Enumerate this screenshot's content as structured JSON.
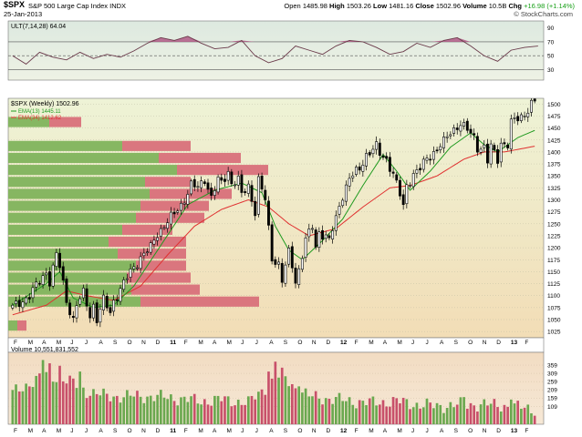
{
  "header": {
    "symbol": "$SPX",
    "name": "S&P 500 Large Cap Index",
    "exchange": "INDX",
    "date": "25-Jan-2013",
    "open_label": "Open",
    "open": "1485.98",
    "high_label": "High",
    "high": "1503.26",
    "low_label": "Low",
    "low": "1481.16",
    "close_label": "Close",
    "close": "1502.96",
    "volume_label": "Volume",
    "volume": "10.5B",
    "chg_label": "Chg",
    "chg": "+16.98 (+1.14%)",
    "watermark": "© StockCharts.com"
  },
  "colors": {
    "up_green": "#18a018",
    "ema13": "#1f9a1f",
    "ema34": "#e03030",
    "vbp_green": "#7fb35c",
    "vbp_red": "#d8707a",
    "vol_green": "#6aa84f",
    "vol_red": "#c8506a",
    "candle": "#000000",
    "price_bg_top": "#eef3d6",
    "price_bg_bottom": "#f2ddb6",
    "ult_fill": "#b05a86"
  },
  "chart_data": [
    {
      "id": "ultimate-oscillator",
      "type": "line",
      "legend": "ULT(7,14,28) 64.04",
      "ylim": [
        15,
        100
      ],
      "reference_lines": [
        30,
        50,
        70
      ],
      "yticks": [
        "90",
        "70",
        "50",
        "30"
      ],
      "x_weeks": [
        0,
        4,
        8,
        12,
        16,
        20,
        24,
        28,
        32,
        36,
        40,
        44,
        48,
        52,
        56,
        60,
        64,
        68,
        72,
        76,
        80,
        84,
        88,
        92,
        96,
        100,
        104,
        108,
        112,
        116,
        120,
        124,
        128,
        132,
        136,
        140,
        144,
        148,
        152,
        156
      ],
      "values": [
        50,
        38,
        55,
        48,
        44,
        55,
        46,
        52,
        48,
        57,
        68,
        76,
        72,
        78,
        68,
        60,
        62,
        72,
        50,
        40,
        46,
        64,
        58,
        52,
        64,
        72,
        70,
        62,
        52,
        56,
        68,
        62,
        72,
        76,
        64,
        50,
        42,
        58,
        62,
        64
      ]
    },
    {
      "id": "price",
      "type": "candlestick",
      "title": "$SPX (Weekly) 1502.96",
      "legend": [
        {
          "name": "EMA(13) 1445.11",
          "color": "#1f9a1f"
        },
        {
          "name": "EMA(34) 1412.62",
          "color": "#e03030"
        }
      ],
      "ylim": [
        1012,
        1512
      ],
      "yticks": [
        1500,
        1475,
        1450,
        1425,
        1400,
        1375,
        1350,
        1325,
        1300,
        1275,
        1250,
        1225,
        1200,
        1175,
        1150,
        1125,
        1100,
        1075,
        1050,
        1025
      ],
      "x_month_labels": [
        "F",
        "M",
        "A",
        "M",
        "J",
        "J",
        "A",
        "S",
        "O",
        "N",
        "D",
        "11",
        "F",
        "M",
        "A",
        "M",
        "J",
        "J",
        "A",
        "S",
        "O",
        "N",
        "D",
        "12",
        "F",
        "M",
        "A",
        "M",
        "J",
        "J",
        "A",
        "S",
        "O",
        "N",
        "D",
        "13",
        "F"
      ],
      "close_anchors_by_week": [
        [
          0,
          1075
        ],
        [
          5,
          1100
        ],
        [
          10,
          1150
        ],
        [
          11,
          1130
        ],
        [
          13,
          1185
        ],
        [
          14,
          1160
        ],
        [
          16,
          1090
        ],
        [
          18,
          1050
        ],
        [
          19,
          1080
        ],
        [
          21,
          1105
        ],
        [
          23,
          1060
        ],
        [
          24,
          1080
        ],
        [
          25,
          1050
        ],
        [
          27,
          1090
        ],
        [
          29,
          1065
        ],
        [
          30,
          1090
        ],
        [
          33,
          1125
        ],
        [
          35,
          1150
        ],
        [
          38,
          1180
        ],
        [
          41,
          1200
        ],
        [
          43,
          1230
        ],
        [
          46,
          1255
        ],
        [
          48,
          1270
        ],
        [
          50,
          1290
        ],
        [
          52,
          1315
        ],
        [
          53,
          1330
        ],
        [
          55,
          1325
        ],
        [
          57,
          1345
        ],
        [
          59,
          1305
        ],
        [
          61,
          1340
        ],
        [
          62,
          1335
        ],
        [
          64,
          1360
        ],
        [
          65,
          1335
        ],
        [
          67,
          1340
        ],
        [
          68,
          1310
        ],
        [
          70,
          1330
        ],
        [
          72,
          1275
        ],
        [
          73,
          1340
        ],
        [
          75,
          1300
        ],
        [
          77,
          1180
        ],
        [
          79,
          1165
        ],
        [
          80,
          1130
        ],
        [
          82,
          1190
        ],
        [
          83,
          1165
        ],
        [
          84,
          1130
        ],
        [
          85,
          1155
        ],
        [
          87,
          1215
        ],
        [
          89,
          1245
        ],
        [
          90,
          1200
        ],
        [
          91,
          1235
        ],
        [
          94,
          1215
        ],
        [
          96,
          1260
        ],
        [
          97,
          1290
        ],
        [
          98,
          1310
        ],
        [
          100,
          1345
        ],
        [
          101,
          1350
        ],
        [
          103,
          1365
        ],
        [
          105,
          1395
        ],
        [
          107,
          1405
        ],
        [
          108,
          1410
        ],
        [
          109,
          1395
        ],
        [
          111,
          1385
        ],
        [
          113,
          1355
        ],
        [
          115,
          1310
        ],
        [
          116,
          1285
        ],
        [
          117,
          1330
        ],
        [
          119,
          1355
        ],
        [
          121,
          1365
        ],
        [
          123,
          1385
        ],
        [
          125,
          1400
        ],
        [
          127,
          1415
        ],
        [
          128,
          1420
        ],
        [
          130,
          1440
        ],
        [
          132,
          1455
        ],
        [
          133,
          1460
        ],
        [
          135,
          1445
        ],
        [
          137,
          1430
        ],
        [
          138,
          1410
        ],
        [
          140,
          1410
        ],
        [
          141,
          1380
        ],
        [
          142,
          1410
        ],
        [
          144,
          1385
        ],
        [
          145,
          1420
        ],
        [
          147,
          1415
        ],
        [
          148,
          1460
        ],
        [
          150,
          1470
        ],
        [
          152,
          1480
        ],
        [
          154,
          1500
        ],
        [
          155,
          1503
        ]
      ],
      "ema13_anchors": [
        [
          0,
          1080
        ],
        [
          10,
          1125
        ],
        [
          14,
          1150
        ],
        [
          18,
          1095
        ],
        [
          24,
          1075
        ],
        [
          30,
          1080
        ],
        [
          36,
          1120
        ],
        [
          44,
          1205
        ],
        [
          52,
          1290
        ],
        [
          60,
          1320
        ],
        [
          68,
          1335
        ],
        [
          74,
          1315
        ],
        [
          78,
          1245
        ],
        [
          82,
          1195
        ],
        [
          86,
          1175
        ],
        [
          92,
          1215
        ],
        [
          98,
          1260
        ],
        [
          104,
          1330
        ],
        [
          110,
          1395
        ],
        [
          114,
          1360
        ],
        [
          118,
          1320
        ],
        [
          124,
          1360
        ],
        [
          130,
          1410
        ],
        [
          136,
          1440
        ],
        [
          140,
          1415
        ],
        [
          144,
          1400
        ],
        [
          150,
          1430
        ],
        [
          155,
          1445
        ]
      ],
      "ema34_anchors": [
        [
          0,
          1060
        ],
        [
          10,
          1080
        ],
        [
          16,
          1110
        ],
        [
          22,
          1100
        ],
        [
          30,
          1090
        ],
        [
          38,
          1120
        ],
        [
          46,
          1185
        ],
        [
          54,
          1245
        ],
        [
          62,
          1280
        ],
        [
          70,
          1300
        ],
        [
          76,
          1285
        ],
        [
          82,
          1250
        ],
        [
          88,
          1225
        ],
        [
          96,
          1240
        ],
        [
          104,
          1285
        ],
        [
          112,
          1325
        ],
        [
          118,
          1330
        ],
        [
          126,
          1350
        ],
        [
          134,
          1385
        ],
        [
          140,
          1400
        ],
        [
          146,
          1400
        ],
        [
          155,
          1412
        ]
      ],
      "volume_by_price": [
        {
          "price_low": 1025,
          "price_high": 1050,
          "up": 4,
          "down": 4
        },
        {
          "price_low": 1075,
          "price_high": 1100,
          "up": 58,
          "down": 52
        },
        {
          "price_low": 1100,
          "price_high": 1125,
          "up": 54,
          "down": 30
        },
        {
          "price_low": 1125,
          "price_high": 1150,
          "up": 52,
          "down": 28
        },
        {
          "price_low": 1150,
          "price_high": 1175,
          "up": 56,
          "down": 22
        },
        {
          "price_low": 1175,
          "price_high": 1200,
          "up": 48,
          "down": 30
        },
        {
          "price_low": 1200,
          "price_high": 1225,
          "up": 44,
          "down": 34
        },
        {
          "price_low": 1225,
          "price_high": 1250,
          "up": 50,
          "down": 22
        },
        {
          "price_low": 1250,
          "price_high": 1275,
          "up": 56,
          "down": 30
        },
        {
          "price_low": 1275,
          "price_high": 1300,
          "up": 58,
          "down": 30
        },
        {
          "price_low": 1300,
          "price_high": 1325,
          "up": 62,
          "down": 36
        },
        {
          "price_low": 1325,
          "price_high": 1350,
          "up": 60,
          "down": 20
        },
        {
          "price_low": 1350,
          "price_high": 1375,
          "up": 74,
          "down": 40
        },
        {
          "price_low": 1375,
          "price_high": 1400,
          "up": 66,
          "down": 36
        },
        {
          "price_low": 1400,
          "price_high": 1425,
          "up": 50,
          "down": 30
        },
        {
          "price_low": 1450,
          "price_high": 1475,
          "up": 18,
          "down": 14
        }
      ]
    },
    {
      "id": "volume",
      "type": "bar",
      "legend": "Volume 10,551,831,552",
      "ylim": [
        0,
        420
      ],
      "yticks": [
        "359",
        "309",
        "259",
        "209",
        "159",
        "109"
      ],
      "x_month_labels": [
        "F",
        "M",
        "A",
        "M",
        "J",
        "J",
        "A",
        "S",
        "O",
        "N",
        "D",
        "11",
        "F",
        "M",
        "A",
        "M",
        "J",
        "J",
        "A",
        "S",
        "O",
        "N",
        "D",
        "12",
        "F",
        "M",
        "A",
        "M",
        "J",
        "J",
        "A",
        "S",
        "O",
        "N",
        "D",
        "13",
        "F"
      ],
      "base_by_week": [
        [
          0,
          190
        ],
        [
          6,
          260
        ],
        [
          10,
          300
        ],
        [
          14,
          280
        ],
        [
          18,
          250
        ],
        [
          22,
          200
        ],
        [
          28,
          170
        ],
        [
          40,
          170
        ],
        [
          48,
          160
        ],
        [
          56,
          140
        ],
        [
          62,
          150
        ],
        [
          70,
          130
        ],
        [
          76,
          240
        ],
        [
          80,
          300
        ],
        [
          84,
          220
        ],
        [
          88,
          170
        ],
        [
          96,
          150
        ],
        [
          106,
          130
        ],
        [
          114,
          140
        ],
        [
          120,
          120
        ],
        [
          126,
          110
        ],
        [
          134,
          120
        ],
        [
          140,
          120
        ],
        [
          148,
          110
        ],
        [
          155,
          90
        ]
      ],
      "spikes": [
        [
          9,
          390
        ],
        [
          11,
          370
        ],
        [
          14,
          355
        ],
        [
          20,
          320
        ],
        [
          76,
          320
        ],
        [
          78,
          380
        ],
        [
          85,
          230
        ],
        [
          134,
          165
        ],
        [
          148,
          150
        ]
      ]
    }
  ]
}
